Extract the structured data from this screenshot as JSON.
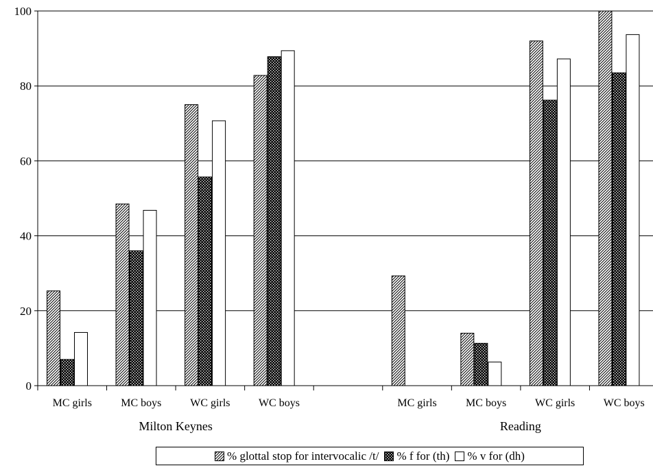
{
  "chart_data": {
    "type": "bar",
    "y_axis": {
      "ylim": [
        0,
        100
      ],
      "ticks": [
        0,
        20,
        40,
        60,
        80,
        100
      ],
      "grid": true
    },
    "groups": [
      {
        "name": "Milton Keynes",
        "categories": [
          "MC girls",
          "MC boys",
          "WC girls",
          "WC boys"
        ]
      },
      {
        "name": "",
        "categories": [
          ""
        ]
      },
      {
        "name": "Reading",
        "categories": [
          "MC girls",
          "MC boys",
          "WC girls",
          "WC boys"
        ]
      }
    ],
    "series": [
      {
        "name": "% glottal stop for intervocalic /t/",
        "pattern": "diagonal-hatch",
        "values": [
          25.3,
          48.5,
          75,
          82.8,
          null,
          29.3,
          14,
          92,
          100
        ]
      },
      {
        "name": "% f for (th)",
        "pattern": "crosshatch",
        "values": [
          7,
          36,
          55.7,
          87.8,
          null,
          null,
          11.3,
          76.2,
          83.5
        ]
      },
      {
        "name": "% v for (dh)",
        "pattern": "white",
        "values": [
          14.2,
          46.8,
          70.7,
          89.4,
          null,
          null,
          6.3,
          87.2,
          93.7
        ]
      }
    ],
    "legend_position": "bottom"
  }
}
